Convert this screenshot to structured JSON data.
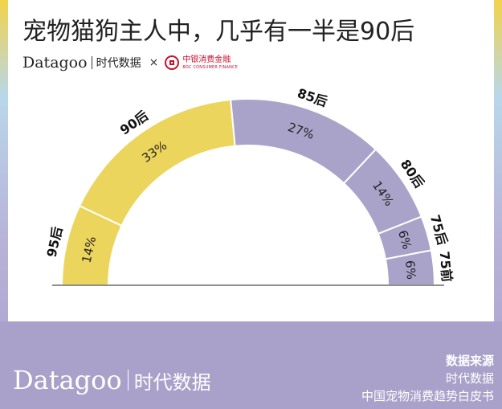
{
  "title": "宠物猫狗主人中，几乎有一半是90后",
  "brand": {
    "en": "Datagoo",
    "cn": "时代数据",
    "times": "×",
    "partner_cn": "中银消费金融",
    "partner_en": "BOC CONSUMER FINANCE"
  },
  "footer": {
    "brand_en": "Datagoo",
    "brand_cn": "时代数据",
    "source_title": "数据来源",
    "source_lines": [
      "时代数据",
      "中国宠物消费趋势白皮书"
    ]
  },
  "colors": {
    "yellow": "#ecd55c",
    "purple": "#a9a3c9",
    "divider": "#ffffff"
  },
  "chart_data": {
    "type": "pie",
    "subtype": "half-donut",
    "categories": [
      "95后",
      "90后",
      "85后",
      "80后",
      "75后",
      "75前"
    ],
    "values": [
      14,
      33,
      27,
      14,
      6,
      6
    ],
    "labels": [
      "14%",
      "33%",
      "27%",
      "14%",
      "6%",
      "6%"
    ],
    "colors": [
      "#ecd55c",
      "#ecd55c",
      "#a9a3c9",
      "#a9a3c9",
      "#a9a3c9",
      "#a9a3c9"
    ]
  }
}
